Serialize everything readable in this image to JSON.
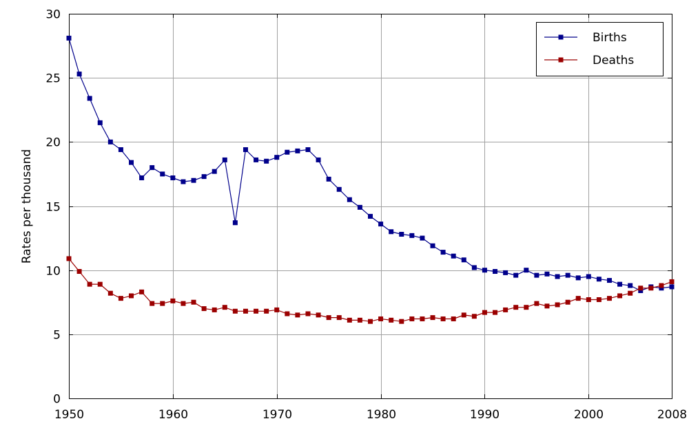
{
  "chart_data": {
    "type": "line",
    "title": "",
    "xlabel": "",
    "ylabel": "Rates per thousand",
    "xlim": [
      1950,
      2008
    ],
    "ylim": [
      0,
      30
    ],
    "x_ticks": [
      1950,
      1960,
      1970,
      1980,
      1990,
      2000,
      2008
    ],
    "y_ticks": [
      0,
      5,
      10,
      15,
      20,
      25,
      30
    ],
    "grid": true,
    "legend_position": "top-right",
    "x": [
      1950,
      1951,
      1952,
      1953,
      1954,
      1955,
      1956,
      1957,
      1958,
      1959,
      1960,
      1961,
      1962,
      1963,
      1964,
      1965,
      1966,
      1967,
      1968,
      1969,
      1970,
      1971,
      1972,
      1973,
      1974,
      1975,
      1976,
      1977,
      1978,
      1979,
      1980,
      1981,
      1982,
      1983,
      1984,
      1985,
      1986,
      1987,
      1988,
      1989,
      1990,
      1991,
      1992,
      1993,
      1994,
      1995,
      1996,
      1997,
      1998,
      1999,
      2000,
      2001,
      2002,
      2003,
      2004,
      2005,
      2006,
      2007,
      2008
    ],
    "series": [
      {
        "name": "Births",
        "color": "#00008b",
        "values": [
          28.1,
          25.3,
          23.4,
          21.5,
          20.0,
          19.4,
          18.4,
          17.2,
          18.0,
          17.5,
          17.2,
          16.9,
          17.0,
          17.3,
          17.7,
          18.6,
          13.7,
          19.4,
          18.6,
          18.5,
          18.8,
          19.2,
          19.3,
          19.4,
          18.6,
          17.1,
          16.3,
          15.5,
          14.9,
          14.2,
          13.6,
          13.0,
          12.8,
          12.7,
          12.5,
          11.9,
          11.4,
          11.1,
          10.8,
          10.2,
          10.0,
          9.9,
          9.8,
          9.6,
          10.0,
          9.6,
          9.7,
          9.5,
          9.6,
          9.4,
          9.5,
          9.3,
          9.2,
          8.9,
          8.8,
          8.4,
          8.7,
          8.6,
          8.7
        ]
      },
      {
        "name": "Deaths",
        "color": "#9b0000",
        "values": [
          10.9,
          9.9,
          8.9,
          8.9,
          8.2,
          7.8,
          8.0,
          8.3,
          7.4,
          7.4,
          7.6,
          7.4,
          7.5,
          7.0,
          6.9,
          7.1,
          6.8,
          6.8,
          6.8,
          6.8,
          6.9,
          6.6,
          6.5,
          6.6,
          6.5,
          6.3,
          6.3,
          6.1,
          6.1,
          6.0,
          6.2,
          6.1,
          6.0,
          6.2,
          6.2,
          6.3,
          6.2,
          6.2,
          6.5,
          6.4,
          6.7,
          6.7,
          6.9,
          7.1,
          7.1,
          7.4,
          7.2,
          7.3,
          7.5,
          7.8,
          7.7,
          7.7,
          7.8,
          8.0,
          8.2,
          8.6,
          8.6,
          8.8,
          9.1
        ]
      }
    ]
  }
}
